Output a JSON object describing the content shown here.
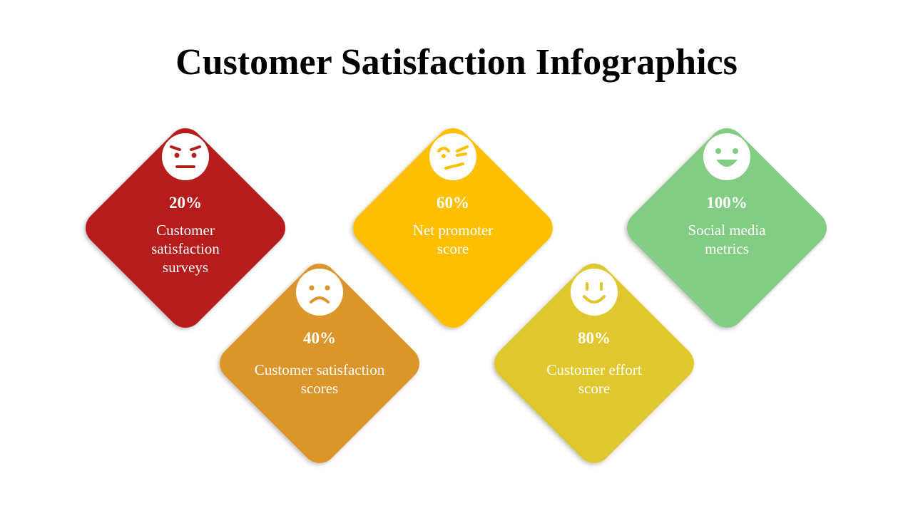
{
  "title": "Customer Satisfaction Infographics",
  "items": [
    {
      "value": "20%",
      "text": "Customer satisfaction surveys"
    },
    {
      "value": "40%",
      "text": "Customer satisfaction scores"
    },
    {
      "value": "60%",
      "text": "Net promoter score"
    },
    {
      "value": "80%",
      "text": "Customer effort score"
    },
    {
      "value": "100%",
      "text": "Social media metrics"
    }
  ]
}
